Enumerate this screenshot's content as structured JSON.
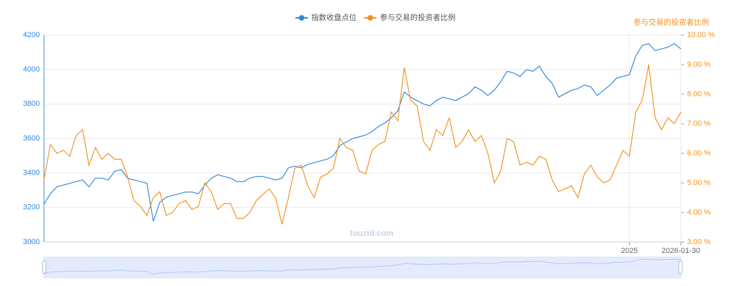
{
  "chart_data": {
    "type": "line",
    "y2_title": "参与交易的投资者比例",
    "watermark": "touzid.com",
    "categories": [
      null,
      null,
      null,
      null,
      null,
      null,
      null,
      null,
      null,
      null,
      null,
      null,
      null,
      null,
      null,
      null,
      null,
      null,
      null,
      null,
      null,
      null,
      null,
      null,
      null,
      null,
      null,
      null,
      null,
      null,
      null,
      null,
      null,
      null,
      null,
      null,
      null,
      null,
      null,
      null,
      null,
      null,
      null,
      null,
      null,
      null,
      null,
      null,
      null,
      null,
      null,
      null,
      null,
      null,
      null,
      null,
      null,
      null,
      null,
      null,
      null,
      null,
      null,
      null,
      null,
      null,
      null,
      null,
      null,
      null,
      null,
      null,
      null,
      null,
      null,
      null,
      null,
      null,
      null,
      null,
      null,
      null,
      null,
      null,
      null,
      null,
      null,
      null,
      null,
      null,
      null,
      "2025",
      null,
      null,
      null,
      null,
      null,
      null,
      null,
      "2026-01-30"
    ],
    "series": [
      {
        "name": "指数收盘点位",
        "color": "#2f86e0",
        "axis": "y",
        "values": [
          3220,
          3280,
          3320,
          3330,
          3340,
          3350,
          3360,
          3320,
          3370,
          3370,
          3360,
          3410,
          3420,
          3370,
          3360,
          3350,
          3340,
          3120,
          3230,
          3260,
          3270,
          3280,
          3290,
          3290,
          3280,
          3330,
          3370,
          3390,
          3380,
          3370,
          3350,
          3350,
          3370,
          3380,
          3380,
          3370,
          3360,
          3370,
          3430,
          3440,
          3430,
          3450,
          3460,
          3470,
          3480,
          3500,
          3560,
          3580,
          3600,
          3610,
          3620,
          3640,
          3670,
          3690,
          3720,
          3760,
          3870,
          3840,
          3820,
          3800,
          3790,
          3820,
          3840,
          3830,
          3820,
          3840,
          3860,
          3900,
          3880,
          3850,
          3880,
          3930,
          3990,
          3980,
          3960,
          4000,
          3990,
          4020,
          3960,
          3920,
          3840,
          3860,
          3880,
          3890,
          3910,
          3900,
          3850,
          3880,
          3910,
          3950,
          3960,
          3970,
          4080,
          4140,
          4150,
          4110,
          4120,
          4130,
          4150,
          4120
        ]
      },
      {
        "name": "参与交易的投资者比例",
        "color": "#f0931f",
        "axis": "y2",
        "values": [
          5.1,
          6.3,
          6.0,
          6.1,
          5.9,
          6.6,
          6.8,
          5.6,
          6.2,
          5.8,
          6.0,
          5.8,
          5.8,
          5.2,
          4.4,
          4.2,
          3.9,
          4.5,
          4.7,
          3.9,
          4.0,
          4.3,
          4.4,
          4.1,
          4.2,
          5.0,
          4.7,
          4.1,
          4.3,
          4.3,
          3.8,
          3.8,
          4.0,
          4.4,
          4.6,
          4.8,
          4.5,
          3.6,
          4.5,
          5.5,
          5.6,
          4.9,
          4.5,
          5.2,
          5.3,
          5.5,
          6.5,
          6.2,
          6.1,
          5.4,
          5.3,
          6.1,
          6.3,
          6.4,
          7.4,
          7.1,
          8.9,
          7.8,
          7.6,
          6.4,
          6.1,
          6.8,
          6.6,
          7.2,
          6.2,
          6.4,
          6.8,
          6.4,
          6.6,
          6.0,
          5.0,
          5.4,
          6.5,
          6.4,
          5.6,
          5.7,
          5.6,
          5.9,
          5.8,
          5.1,
          4.7,
          4.8,
          4.9,
          4.5,
          5.3,
          5.6,
          5.2,
          5.0,
          5.1,
          5.6,
          6.1,
          5.9,
          7.4,
          7.8,
          9.0,
          7.2,
          6.8,
          7.2,
          7.0,
          7.4
        ]
      }
    ],
    "ylim": [
      3000,
      4200
    ],
    "yticks": [
      3000,
      3200,
      3400,
      3600,
      3800,
      4000,
      4200
    ],
    "y2lim": [
      3,
      10
    ],
    "y2ticks": [
      {
        "value": 3,
        "label": "3.00 %"
      },
      {
        "value": 4,
        "label": "4.00 %"
      },
      {
        "value": 5,
        "label": "5.00 %"
      },
      {
        "value": 6,
        "label": "6.00 %"
      },
      {
        "value": 7,
        "label": "7.00 %"
      },
      {
        "value": 8,
        "label": "8.00 %"
      },
      {
        "value": 9,
        "label": "9.00 %"
      },
      {
        "value": 10,
        "label": "10.00 %"
      }
    ],
    "grid": true
  }
}
